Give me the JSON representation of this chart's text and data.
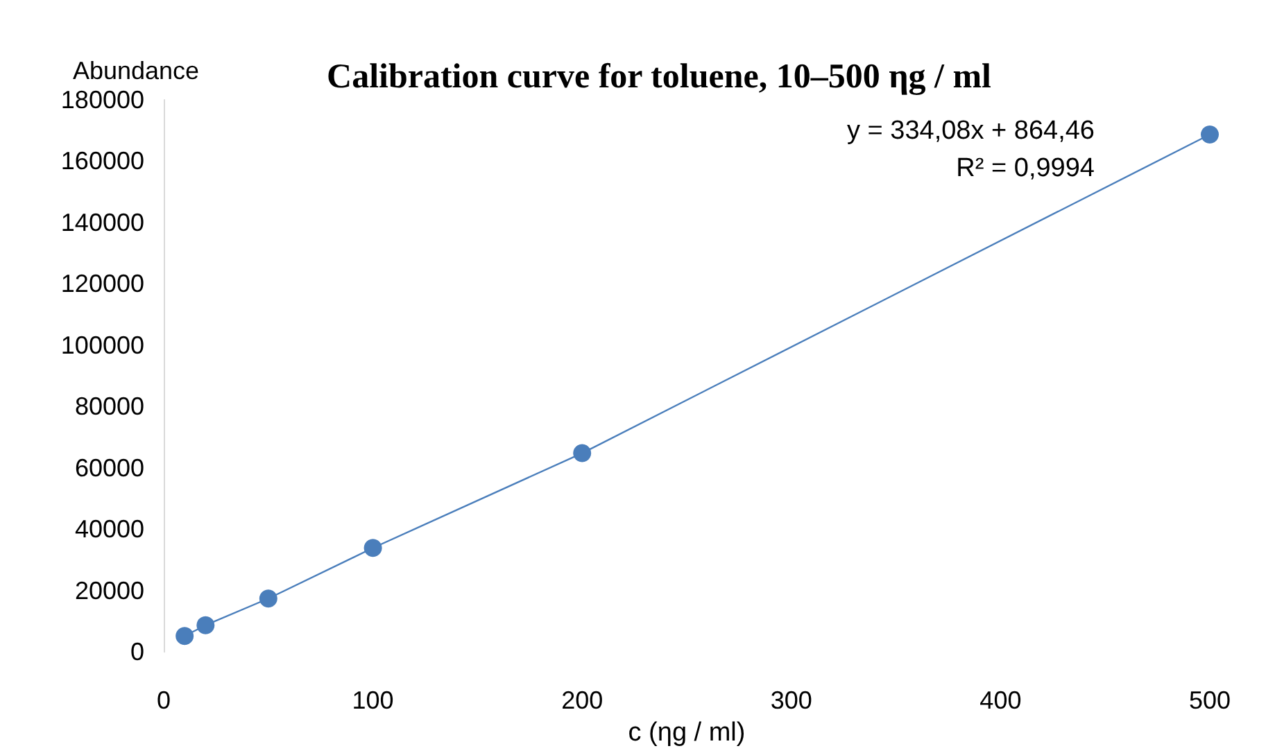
{
  "chart_data": {
    "type": "line",
    "title": "Calibration curve for toluene, 10–500 ηg / ml",
    "xlabel": "c (ηg / ml)",
    "ylabel": "Abundance",
    "x": [
      10,
      20,
      50,
      100,
      200,
      500
    ],
    "series": [
      {
        "color": "#4a7ebb",
        "values": [
          5200,
          8700,
          17400,
          33900,
          64800,
          168700
        ]
      }
    ],
    "annotations": [
      "y = 334,08x + 864,46",
      "R² = 0,9994"
    ],
    "xlim": [
      0,
      500
    ],
    "xticks": [
      0,
      100,
      200,
      300,
      400,
      500
    ],
    "ylim": [
      0,
      180000
    ],
    "yticks": [
      0,
      20000,
      40000,
      60000,
      80000,
      100000,
      120000,
      140000,
      160000,
      180000
    ],
    "marker": "circle"
  }
}
